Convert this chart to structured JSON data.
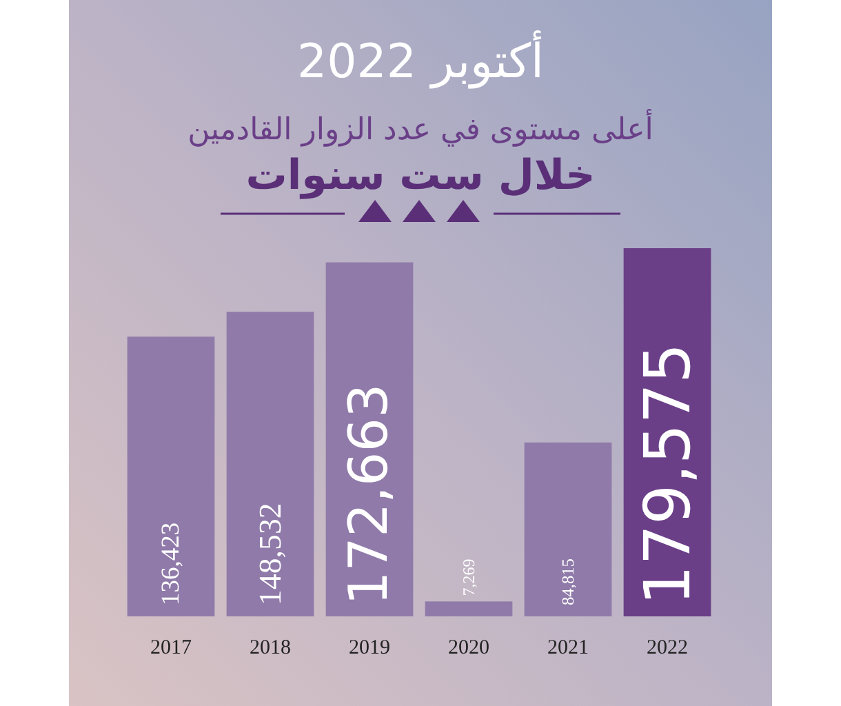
{
  "chart_data": {
    "type": "bar",
    "title": "أكتوبر 2022",
    "subtitle": "أعلى مستوى في عدد الزوار القادمين",
    "annotations": [
      "خلال ست سنوات"
    ],
    "categories": [
      "2017",
      "2018",
      "2019",
      "2020",
      "2021",
      "2022"
    ],
    "values": [
      136423,
      148532,
      172663,
      7269,
      84815,
      179575
    ],
    "colors": [
      "#8f7aa9",
      "#8f7aa9",
      "#8f7aa9",
      "#8f7aa9",
      "#8f7aa9",
      "#6a3f88"
    ],
    "value_labels": [
      "136,423",
      "148,532",
      "172,663",
      "7,269",
      "84,815",
      "179,575"
    ]
  }
}
